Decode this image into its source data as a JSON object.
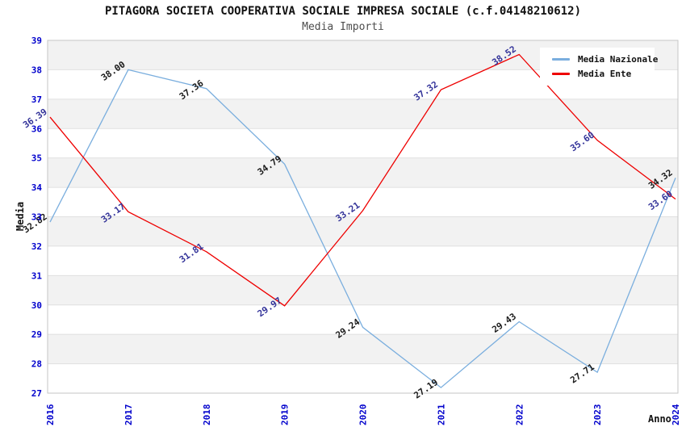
{
  "header": {
    "title": "PITAGORA SOCIETA COOPERATIVA SOCIALE IMPRESA SOCIALE (c.f.04148210612)",
    "subtitle": "Media Importi"
  },
  "chart_data": {
    "type": "line",
    "title": "PITAGORA SOCIETA COOPERATIVA SOCIALE IMPRESA SOCIALE (c.f.04148210612)",
    "subtitle": "Media Importi",
    "xlabel": "Anno",
    "ylabel": "Media",
    "x": [
      "2016",
      "2017",
      "2018",
      "2019",
      "2020",
      "2021",
      "2022",
      "2023",
      "2024"
    ],
    "ylim": [
      27,
      39
    ],
    "y_tick_step": 1,
    "grid": "horizontal alternating bands with integer gridlines",
    "legend_position": "top-right",
    "point_labels_visible": true,
    "series": [
      {
        "name": "Media Nazionale",
        "color": "#7aaede",
        "label_color": "#1a1a1a",
        "values": [
          32.82,
          38.0,
          37.36,
          34.79,
          29.24,
          27.19,
          29.43,
          27.71,
          34.32
        ]
      },
      {
        "name": "Media Ente",
        "color": "#ee0000",
        "label_color": "#333399",
        "values": [
          36.39,
          33.17,
          31.81,
          29.97,
          33.21,
          37.32,
          38.52,
          35.6,
          33.6
        ]
      }
    ],
    "colors": {
      "axis_tick": "#0000cc",
      "band": "#f2f2f2",
      "grid_line": "#e0e0e0",
      "plot_border": "#c6c6c6"
    }
  }
}
